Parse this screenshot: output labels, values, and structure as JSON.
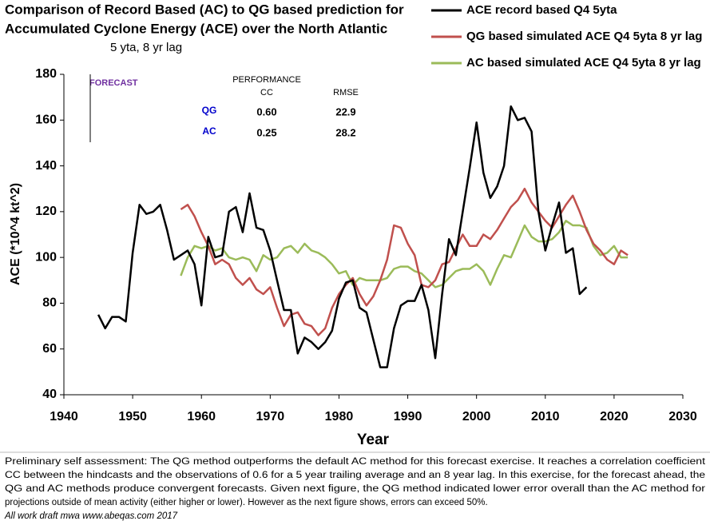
{
  "chart_data": {
    "type": "line",
    "title": [
      "Comparison of Record Based (AC) to QG based prediction for",
      "Accumulated Cyclone Energy (ACE) over the North Atlantic"
    ],
    "subtitle": "5 yta, 8 yr lag",
    "x_label": "Year",
    "y_label": "ACE (*10^4 kt^2)",
    "xlim": [
      1940,
      2030
    ],
    "xticks": [
      1940,
      1950,
      1960,
      1970,
      1980,
      1990,
      2000,
      2010,
      2020,
      2030
    ],
    "ylim": [
      40,
      180
    ],
    "yticks": [
      40,
      60,
      80,
      100,
      120,
      140,
      160,
      180
    ],
    "annotation": "FORECAST",
    "performance": {
      "heading": "PERFORMANCE",
      "columns": [
        "CC",
        "RMSE"
      ],
      "rows": [
        {
          "name": "QG",
          "cc": "0.60",
          "rmse": "22.9"
        },
        {
          "name": "AC",
          "cc": "0.25",
          "rmse": "28.2"
        }
      ]
    },
    "series": [
      {
        "name": "ACE record based Q4 5yta",
        "color": "#000000",
        "x": [
          1945,
          1946,
          1947,
          1948,
          1949,
          1950,
          1951,
          1952,
          1953,
          1954,
          1955,
          1956,
          1957,
          1958,
          1959,
          1960,
          1961,
          1962,
          1963,
          1964,
          1965,
          1966,
          1967,
          1968,
          1969,
          1970,
          1971,
          1972,
          1973,
          1974,
          1975,
          1976,
          1977,
          1978,
          1979,
          1980,
          1981,
          1982,
          1983,
          1984,
          1985,
          1986,
          1987,
          1988,
          1989,
          1990,
          1991,
          1992,
          1993,
          1994,
          1995,
          1996,
          1997,
          1998,
          1999,
          2000,
          2001,
          2002,
          2003,
          2004,
          2005,
          2006,
          2007,
          2008,
          2009,
          2010,
          2011,
          2012,
          2013,
          2014,
          2015,
          2016
        ],
        "values": [
          75,
          69,
          74,
          74,
          72,
          102,
          123,
          119,
          120,
          123,
          112,
          99,
          101,
          103,
          97,
          79,
          109,
          100,
          101,
          120,
          122,
          111,
          128,
          113,
          112,
          103,
          90,
          77,
          77,
          58,
          65,
          63,
          60,
          63,
          68,
          82,
          89,
          90,
          78,
          76,
          64,
          52,
          52,
          69,
          79,
          81,
          81,
          88,
          77,
          56,
          84,
          108,
          101,
          120,
          139,
          159,
          137,
          126,
          131,
          140,
          166,
          160,
          161,
          155,
          120,
          103,
          114,
          124,
          102,
          104,
          84,
          87
        ]
      },
      {
        "name": "QG based simulated ACE Q4 5yta 8 yr lag",
        "color": "#c0504d",
        "x": [
          1957,
          1958,
          1959,
          1960,
          1961,
          1962,
          1963,
          1964,
          1965,
          1966,
          1967,
          1968,
          1969,
          1970,
          1971,
          1972,
          1973,
          1974,
          1975,
          1976,
          1977,
          1978,
          1979,
          1980,
          1981,
          1982,
          1983,
          1984,
          1985,
          1986,
          1987,
          1988,
          1989,
          1990,
          1991,
          1992,
          1993,
          1994,
          1995,
          1996,
          1997,
          1998,
          1999,
          2000,
          2001,
          2002,
          2003,
          2004,
          2005,
          2006,
          2007,
          2008,
          2009,
          2010,
          2011,
          2012,
          2013,
          2014,
          2015,
          2016,
          2017,
          2018,
          2019,
          2020,
          2021,
          2022
        ],
        "values": [
          121,
          123,
          118,
          111,
          105,
          97,
          99,
          97,
          91,
          88,
          91,
          86,
          84,
          87,
          78,
          70,
          75,
          76,
          71,
          70,
          66,
          69,
          78,
          84,
          88,
          91,
          84,
          79,
          83,
          90,
          99,
          114,
          113,
          106,
          101,
          88,
          87,
          90,
          97,
          98,
          104,
          110,
          105,
          105,
          110,
          108,
          112,
          117,
          122,
          125,
          130,
          124,
          120,
          116,
          113,
          118,
          123,
          127,
          120,
          112,
          106,
          103,
          99,
          97,
          103,
          101
        ]
      },
      {
        "name": "AC based simulated ACE Q4 5yta 8 yr lag",
        "color": "#9bbb59",
        "x": [
          1957,
          1958,
          1959,
          1960,
          1961,
          1962,
          1963,
          1964,
          1965,
          1966,
          1967,
          1968,
          1969,
          1970,
          1971,
          1972,
          1973,
          1974,
          1975,
          1976,
          1977,
          1978,
          1979,
          1980,
          1981,
          1982,
          1983,
          1984,
          1985,
          1986,
          1987,
          1988,
          1989,
          1990,
          1991,
          1992,
          1993,
          1994,
          1995,
          1996,
          1997,
          1998,
          1999,
          2000,
          2001,
          2002,
          2003,
          2004,
          2005,
          2006,
          2007,
          2008,
          2009,
          2010,
          2011,
          2012,
          2013,
          2014,
          2015,
          2016,
          2017,
          2018,
          2019,
          2020,
          2021,
          2022
        ],
        "values": [
          92,
          100,
          105,
          104,
          105,
          103,
          104,
          100,
          99,
          100,
          99,
          94,
          101,
          99,
          100,
          104,
          105,
          102,
          106,
          103,
          102,
          100,
          97,
          93,
          94,
          88,
          91,
          90,
          90,
          90,
          91,
          95,
          96,
          96,
          94,
          93,
          90,
          87,
          88,
          91,
          94,
          95,
          95,
          97,
          94,
          88,
          95,
          101,
          100,
          107,
          114,
          109,
          107,
          107,
          108,
          111,
          116,
          114,
          114,
          113,
          105,
          101,
          102,
          105,
          100,
          100
        ]
      }
    ],
    "footnote_lines": [
      "Preliminary self assessment: The QG method outperforms the default AC method for this forecast exercise.  It reaches a correlation coefficient",
      "CC between the hindcasts and the observations of 0.6 for a 5 year trailing average and an 8 year lag.  In this exercise, for the forecast ahead, the",
      "QG and AC methods produce convergent forecasts.  Given next figure, the QG method indicated lower error overall  than the AC method for",
      "projections outside of mean activity (either higher or lower).  However as the next figure shows, errors can exceed 50%."
    ],
    "credit": "All work draft mwa www.abeqas.com 2017"
  }
}
